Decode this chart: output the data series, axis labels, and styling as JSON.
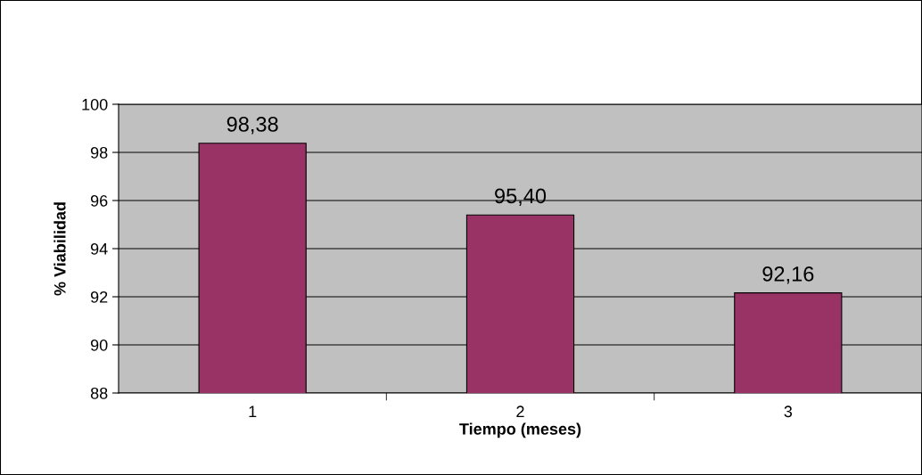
{
  "chart_data": {
    "type": "bar",
    "xlabel": "Tiempo (meses)",
    "ylabel": "% Viabilidad",
    "categories": [
      "1",
      "2",
      "3"
    ],
    "series": [
      {
        "color": "#993366",
        "values": [
          98.38,
          95.4,
          92.16
        ],
        "value_labels": [
          "98,38",
          "95,40",
          "92,16"
        ]
      }
    ],
    "ylim": [
      88,
      100
    ],
    "yticks": [
      88,
      90,
      92,
      94,
      96,
      98,
      100
    ],
    "grid": "y",
    "legend": false
  }
}
